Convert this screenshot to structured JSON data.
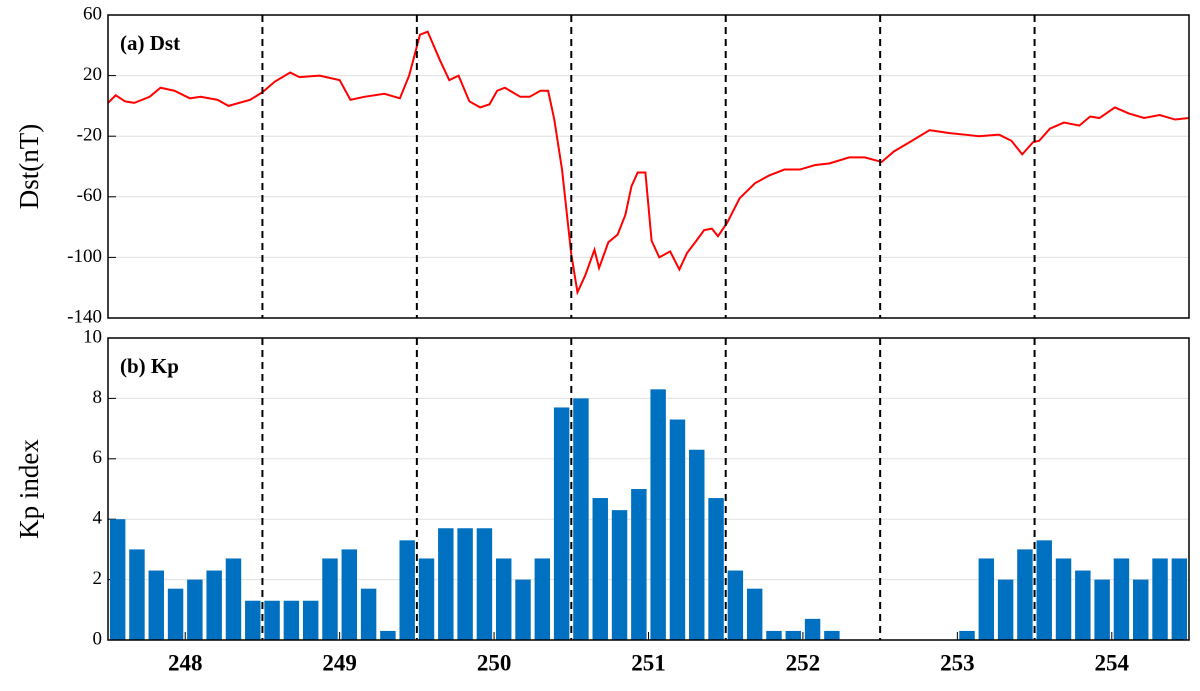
{
  "chart_data": [
    {
      "type": "line",
      "panel_label": "(a) Dst",
      "ylabel": "Dst(nT)",
      "color": "#ff0000",
      "xlim": [
        248,
        255
      ],
      "ylim": [
        -140,
        60
      ],
      "yticks": [
        60,
        20,
        -20,
        -60,
        -100,
        -140
      ],
      "grid": true,
      "vlines": [
        249,
        250,
        251,
        252,
        253,
        254
      ],
      "x": [
        248.0,
        248.05,
        248.11,
        248.17,
        248.27,
        248.34,
        248.43,
        248.53,
        248.6,
        248.71,
        248.78,
        248.92,
        249.0,
        249.08,
        249.18,
        249.24,
        249.37,
        249.5,
        249.57,
        249.66,
        249.79,
        249.89,
        249.95,
        250.02,
        250.07,
        250.15,
        250.21,
        250.27,
        250.34,
        250.41,
        250.47,
        250.52,
        250.57,
        250.67,
        250.73,
        250.8,
        250.85,
        250.89,
        250.94,
        251.0,
        251.04,
        251.09,
        251.15,
        251.18,
        251.24,
        251.3,
        251.35,
        251.39,
        251.43,
        251.48,
        251.52,
        251.57,
        251.64,
        251.7,
        251.75,
        251.81,
        251.86,
        251.91,
        251.95,
        252.01,
        252.09,
        252.19,
        252.28,
        252.38,
        252.48,
        252.58,
        252.67,
        252.8,
        252.9,
        253.01,
        253.09,
        253.19,
        253.32,
        253.45,
        253.55,
        253.64,
        253.77,
        253.85,
        253.92,
        253.99,
        254.03,
        254.1,
        254.19,
        254.29,
        254.36,
        254.42,
        254.52,
        254.61,
        254.71,
        254.81,
        254.91,
        255.0
      ],
      "values": [
        2,
        7,
        3,
        2,
        6,
        12,
        10,
        5,
        6,
        4,
        0,
        4,
        9,
        16,
        22,
        19,
        20,
        17,
        4,
        6,
        8,
        5,
        20,
        47,
        49,
        30,
        17,
        20,
        3,
        -1,
        1,
        10,
        12,
        6,
        6,
        10,
        10,
        -9,
        -42,
        -98,
        -123,
        -112,
        -95,
        -107,
        -90,
        -85,
        -72,
        -53,
        -44,
        -44,
        -89,
        -100,
        -96,
        -108,
        -97,
        -89,
        -82,
        -81,
        -86,
        -77,
        -61,
        -51,
        -46,
        -42,
        -42,
        -39,
        -38,
        -34,
        -34,
        -37,
        -30,
        -24,
        -16,
        -18,
        -19,
        -20,
        -19,
        -23,
        -32,
        -24,
        -23,
        -15,
        -11,
        -13,
        -7,
        -8,
        -1,
        -5,
        -8,
        -6,
        -9,
        -8
      ]
    },
    {
      "type": "bar",
      "panel_label": "(b) Kp",
      "ylabel": "Kp index",
      "color": "#0070c0",
      "xlim": [
        248,
        255
      ],
      "ylim": [
        0,
        10
      ],
      "yticks": [
        0,
        2,
        4,
        6,
        8,
        10
      ],
      "grid": true,
      "vlines": [
        249,
        250,
        251,
        252,
        253,
        254
      ],
      "xticks": [
        {
          "value": 248.5,
          "label": "248"
        },
        {
          "value": 249.5,
          "label": "249"
        },
        {
          "value": 250.5,
          "label": "250"
        },
        {
          "value": 251.5,
          "label": "251"
        },
        {
          "value": 252.5,
          "label": "252"
        },
        {
          "value": 253.5,
          "label": "253"
        },
        {
          "value": 254.5,
          "label": "254"
        }
      ],
      "x": [
        248.0625,
        248.1875,
        248.3125,
        248.4375,
        248.5625,
        248.6875,
        248.8125,
        248.9375,
        249.0625,
        249.1875,
        249.3125,
        249.4375,
        249.5625,
        249.6875,
        249.8125,
        249.9375,
        250.0625,
        250.1875,
        250.3125,
        250.4375,
        250.5625,
        250.6875,
        250.8125,
        250.9375,
        251.0625,
        251.1875,
        251.3125,
        251.4375,
        251.5625,
        251.6875,
        251.8125,
        251.9375,
        252.0625,
        252.1875,
        252.3125,
        252.4375,
        252.5625,
        252.6875,
        252.8125,
        252.9375,
        253.0625,
        253.1875,
        253.3125,
        253.4375,
        253.5625,
        253.6875,
        253.8125,
        253.9375,
        254.0625,
        254.1875,
        254.3125,
        254.4375,
        254.5625,
        254.6875,
        254.8125,
        254.9375
      ],
      "values": [
        4.0,
        3.0,
        2.3,
        1.7,
        2.0,
        2.3,
        2.7,
        1.3,
        1.3,
        1.3,
        1.3,
        2.7,
        3.0,
        1.7,
        0.3,
        3.3,
        2.7,
        3.7,
        3.7,
        3.7,
        2.7,
        2.0,
        2.7,
        7.7,
        8.0,
        4.7,
        4.3,
        5.0,
        8.3,
        7.3,
        6.3,
        4.7,
        2.3,
        1.7,
        0.3,
        0.3,
        0.7,
        0.3,
        0,
        0,
        0,
        0,
        0,
        0,
        0.3,
        2.7,
        2.0,
        3.0,
        3.3,
        2.7,
        2.3,
        2.0,
        2.7,
        2.0,
        2.7,
        2.7
      ]
    }
  ]
}
